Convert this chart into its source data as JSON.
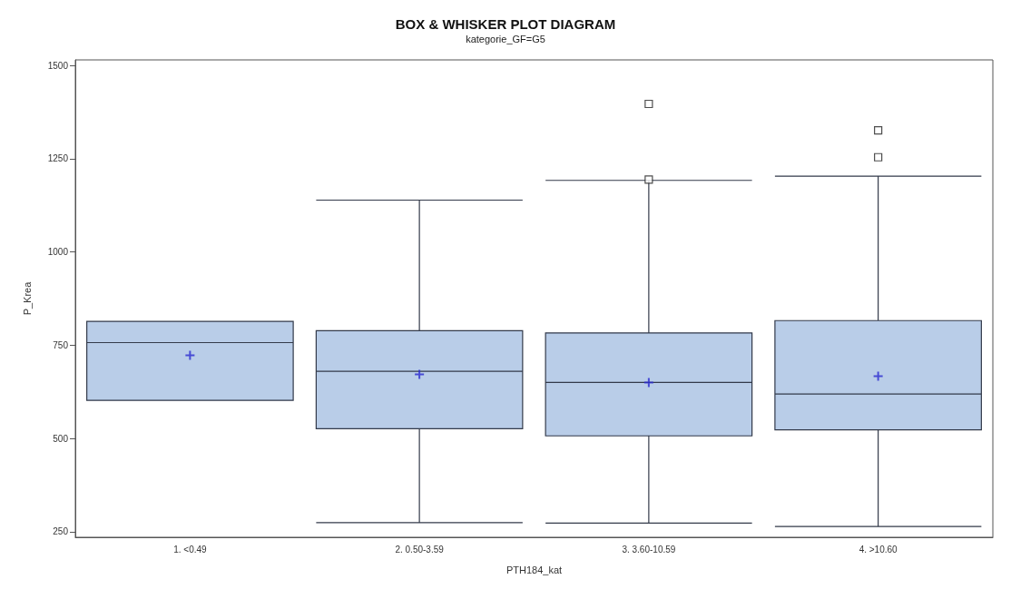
{
  "chart_data": {
    "type": "box",
    "title": "BOX & WHISKER PLOT DIAGRAM",
    "subtitle": "kategorie_GF=G5",
    "xlabel": "PTH184_kat",
    "ylabel": "P_Krea",
    "categories": [
      "1. <0.49",
      "2. 0.50-3.59",
      "3. 3.60-10.59",
      "4. >10.60"
    ],
    "color": "#b9cde8",
    "boxes": [
      {
        "low": 602,
        "q1": 602,
        "median": 757,
        "q3": 814,
        "high": 814,
        "mean": 723
      },
      {
        "low": 274,
        "q1": 526,
        "median": 680,
        "q3": 789,
        "high": 1139,
        "mean": 672
      },
      {
        "low": 273,
        "q1": 507,
        "median": 650,
        "q3": 783,
        "high": 1192,
        "mean": 650,
        "outliers": [
          1194,
          1397
        ]
      },
      {
        "low": 264,
        "q1": 523,
        "median": 619,
        "q3": 816,
        "high": 1203,
        "mean": 667,
        "outliers": [
          1254,
          1326
        ]
      }
    ],
    "ylim": [
      235,
      1515
    ],
    "yticks": [
      250,
      500,
      750,
      1000,
      1250,
      1500
    ],
    "grid": false
  }
}
